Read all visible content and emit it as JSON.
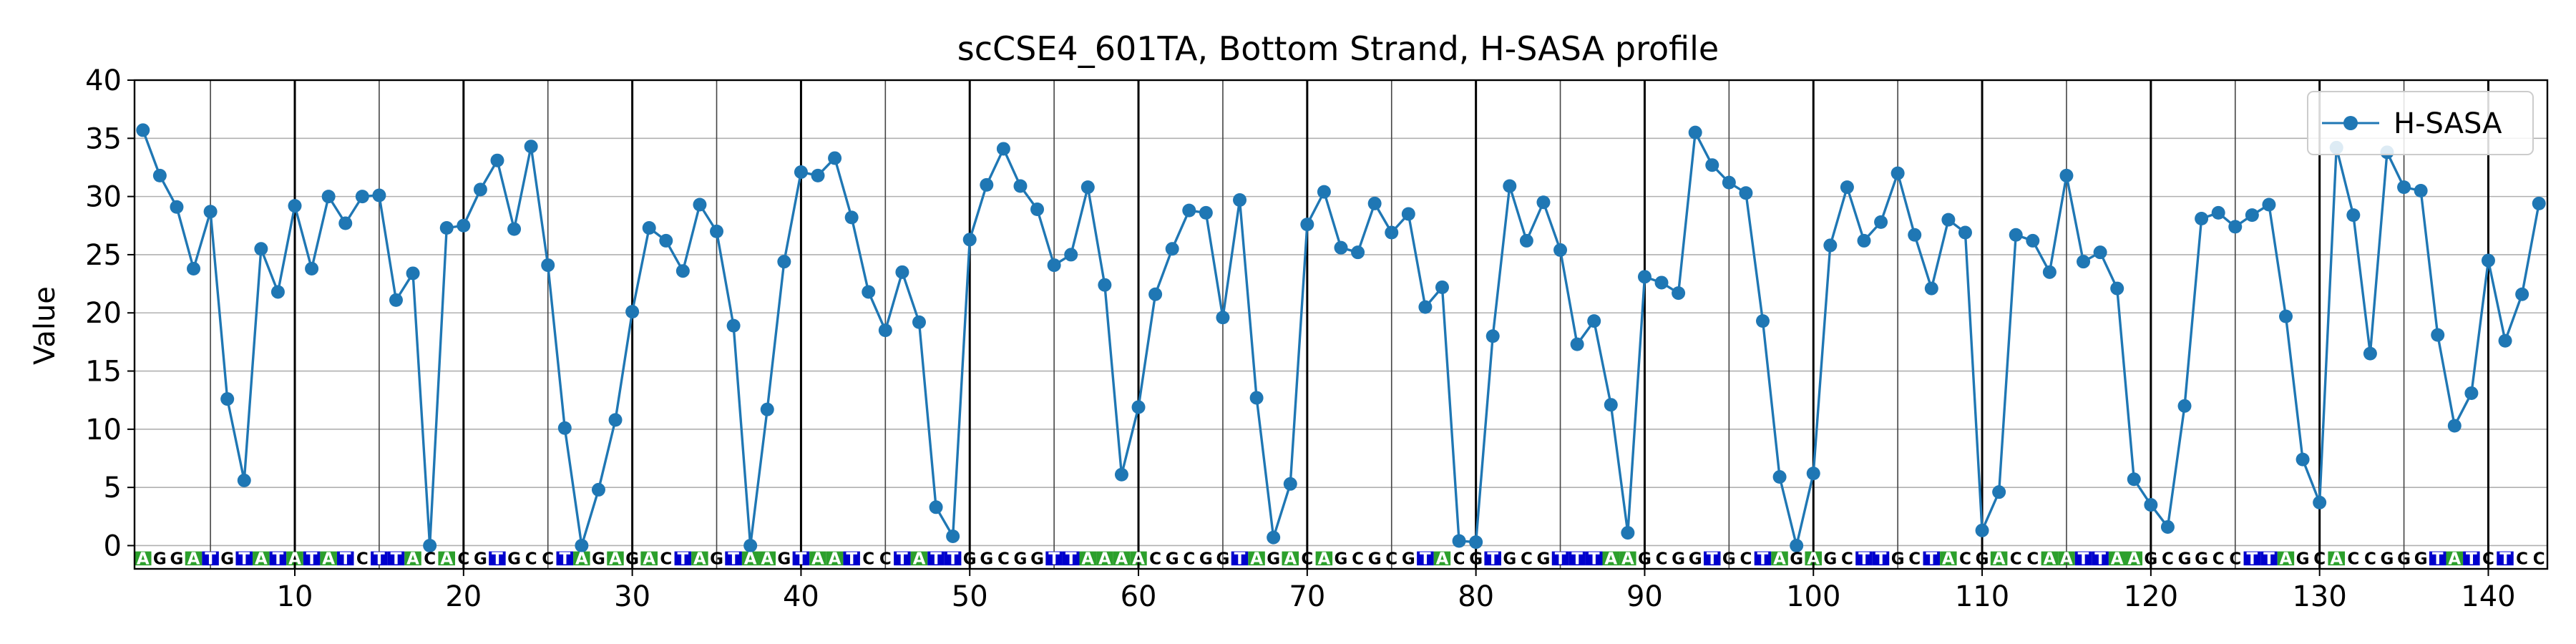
{
  "chart_data": {
    "type": "line",
    "title": "scCSE4_601TA, Bottom Strand, H-SASA profile",
    "xlabel": "",
    "ylabel": "Value",
    "xlim": [
      0.5,
      143.5
    ],
    "ylim": [
      -2,
      40
    ],
    "yticks": [
      0,
      5,
      10,
      15,
      20,
      25,
      30,
      35,
      40
    ],
    "xticks": [
      10,
      20,
      30,
      40,
      50,
      60,
      70,
      80,
      90,
      100,
      110,
      120,
      130,
      140
    ],
    "grid": true,
    "legend_position": "upper-right",
    "series": [
      {
        "name": "H-SASA",
        "color": "#1f77b4",
        "x": [
          1,
          2,
          3,
          4,
          5,
          6,
          7,
          8,
          9,
          10,
          11,
          12,
          13,
          14,
          15,
          16,
          17,
          18,
          19,
          20,
          21,
          22,
          23,
          24,
          25,
          26,
          27,
          28,
          29,
          30,
          31,
          32,
          33,
          34,
          35,
          36,
          37,
          38,
          39,
          40,
          41,
          42,
          43,
          44,
          45,
          46,
          47,
          48,
          49,
          50,
          51,
          52,
          53,
          54,
          55,
          56,
          57,
          58,
          59,
          60,
          61,
          62,
          63,
          64,
          65,
          66,
          67,
          68,
          69,
          70,
          71,
          72,
          73,
          74,
          75,
          76,
          77,
          78,
          79,
          80,
          81,
          82,
          83,
          84,
          85,
          86,
          87,
          88,
          89,
          90,
          91,
          92,
          93,
          94,
          95,
          96,
          97,
          98,
          99,
          100,
          101,
          102,
          103,
          104,
          105,
          106,
          107,
          108,
          109,
          110,
          111,
          112,
          113,
          114,
          115,
          116,
          117,
          118,
          119,
          120,
          121,
          122,
          123,
          124,
          125,
          126,
          127,
          128,
          129,
          130,
          131,
          132,
          133,
          134,
          135,
          136,
          137,
          138,
          139,
          140,
          141,
          142,
          143
        ],
        "values": [
          35.7,
          31.8,
          29.1,
          23.8,
          28.7,
          12.6,
          5.6,
          25.5,
          21.8,
          29.2,
          23.8,
          30.0,
          27.7,
          30.0,
          30.1,
          21.1,
          23.4,
          0.0,
          27.3,
          27.5,
          30.6,
          33.1,
          27.2,
          34.3,
          24.1,
          10.1,
          0.0,
          4.8,
          10.8,
          20.1,
          27.3,
          26.2,
          23.6,
          29.3,
          27.0,
          18.9,
          0.0,
          11.7,
          24.4,
          32.1,
          31.8,
          33.3,
          28.2,
          21.8,
          18.5,
          23.5,
          19.2,
          3.3,
          0.8,
          26.3,
          31.0,
          34.1,
          30.9,
          28.9,
          24.1,
          25.0,
          30.8,
          22.4,
          6.1,
          11.9,
          21.6,
          25.5,
          28.8,
          28.6,
          19.6,
          29.7,
          12.7,
          0.7,
          5.3,
          27.6,
          30.4,
          25.6,
          25.2,
          29.4,
          26.9,
          28.5,
          20.5,
          22.2,
          0.4,
          0.3,
          18.0,
          30.9,
          26.2,
          29.5,
          25.4,
          17.3,
          19.3,
          12.1,
          1.1,
          23.1,
          22.6,
          21.7,
          35.5,
          32.7,
          31.2,
          30.3,
          19.3,
          5.9,
          0.0,
          6.2,
          25.8,
          30.8,
          26.2,
          27.8,
          32.0,
          26.7,
          22.1,
          28.0,
          26.9,
          1.3,
          4.6,
          26.7,
          26.2,
          23.5,
          31.8,
          24.4,
          25.2,
          22.1,
          5.7,
          3.5,
          1.6,
          12.0,
          28.1,
          28.6,
          27.4,
          28.4,
          29.3,
          19.7,
          7.4,
          3.7,
          34.2,
          28.4,
          16.5,
          33.8,
          30.8,
          30.5,
          18.1,
          10.3,
          13.1,
          24.5,
          17.6,
          21.6,
          29.4
        ]
      }
    ],
    "sequence": "AGGATGTATATATCTTACACGTGCCTAGAGACTAGTAAGTAATCCTATTGGCGGTTAAAACGCGGTAGACAGCGCGTACGTGCGTTTAAGCGGTGCTAGAGCTTGCTACGACCAATTAAGCGGCCTTAGCACCGGGTATCTCC",
    "base_colors": {
      "A": "#2ca02c",
      "T": "#0000cd",
      "G": "#ffffff",
      "C": "#ffffff"
    }
  }
}
